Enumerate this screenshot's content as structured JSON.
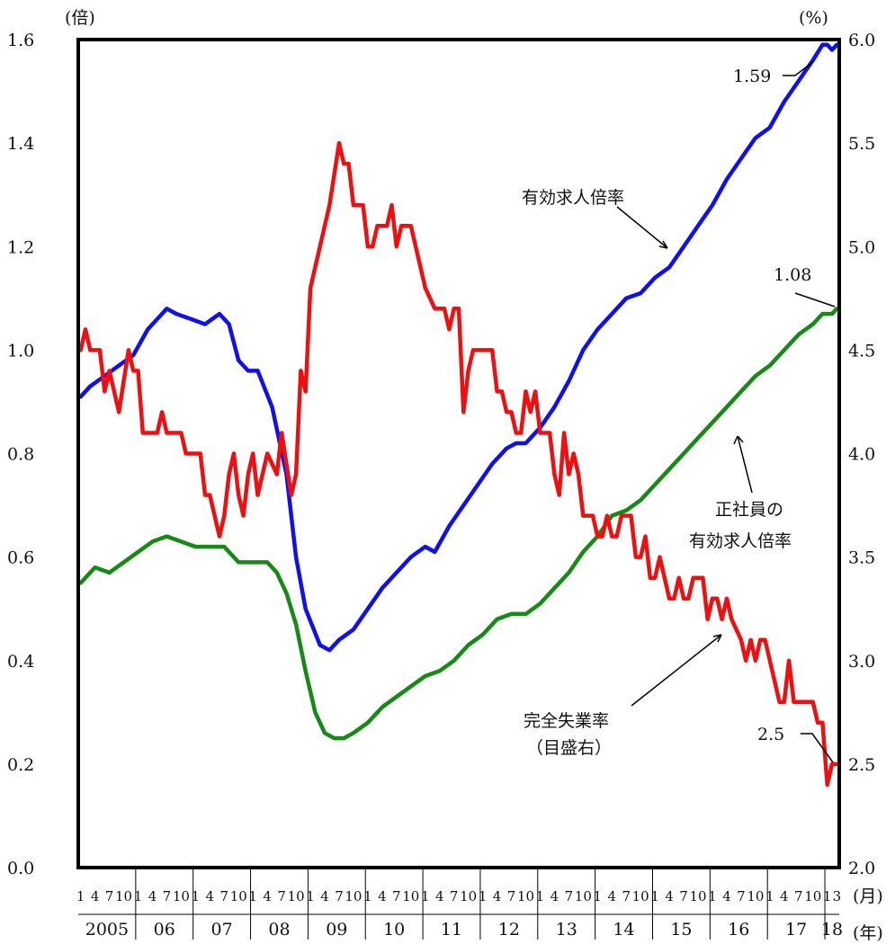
{
  "chart_data": {
    "type": "line",
    "left_axis_unit": "(倍)",
    "right_axis_unit": "(%)",
    "month_axis_unit": "(月)",
    "year_axis_unit": "(年)",
    "left_ylim": [
      0.0,
      1.6
    ],
    "right_ylim": [
      2.0,
      6.0
    ],
    "left_ticks": [
      "0.0",
      "0.2",
      "0.4",
      "0.6",
      "0.8",
      "1.0",
      "1.2",
      "1.4",
      "1.6"
    ],
    "right_ticks": [
      "2.0",
      "2.5",
      "3.0",
      "3.5",
      "4.0",
      "4.5",
      "5.0",
      "5.5",
      "6.0"
    ],
    "month_tick_labels": [
      "1",
      "4",
      "7",
      "10"
    ],
    "last_year_month_labels": [
      "1",
      "3"
    ],
    "years": [
      "2005",
      "06",
      "07",
      "08",
      "09",
      "10",
      "11",
      "12",
      "13",
      "14",
      "15",
      "16",
      "17",
      "18"
    ],
    "x_start": "2005-01",
    "x_end": "2018-03",
    "grid": false,
    "series": [
      {
        "name": "有効求人倍率",
        "axis": "left",
        "color": "#1010ee",
        "points": [
          [
            "2005-01",
            0.91
          ],
          [
            "2005-03",
            0.93
          ],
          [
            "2005-06",
            0.95
          ],
          [
            "2005-09",
            0.97
          ],
          [
            "2005-12",
            0.99
          ],
          [
            "2006-03",
            1.04
          ],
          [
            "2006-06",
            1.07
          ],
          [
            "2006-07",
            1.08
          ],
          [
            "2006-09",
            1.07
          ],
          [
            "2006-12",
            1.06
          ],
          [
            "2007-03",
            1.05
          ],
          [
            "2007-06",
            1.07
          ],
          [
            "2007-08",
            1.05
          ],
          [
            "2007-10",
            0.98
          ],
          [
            "2007-12",
            0.96
          ],
          [
            "2008-02",
            0.96
          ],
          [
            "2008-05",
            0.89
          ],
          [
            "2008-08",
            0.76
          ],
          [
            "2008-10",
            0.6
          ],
          [
            "2008-12",
            0.5
          ],
          [
            "2009-03",
            0.43
          ],
          [
            "2009-05",
            0.42
          ],
          [
            "2009-07",
            0.44
          ],
          [
            "2009-10",
            0.46
          ],
          [
            "2010-01",
            0.5
          ],
          [
            "2010-04",
            0.54
          ],
          [
            "2010-07",
            0.57
          ],
          [
            "2010-10",
            0.6
          ],
          [
            "2011-01",
            0.62
          ],
          [
            "2011-03",
            0.61
          ],
          [
            "2011-06",
            0.66
          ],
          [
            "2011-09",
            0.7
          ],
          [
            "2011-12",
            0.74
          ],
          [
            "2012-03",
            0.78
          ],
          [
            "2012-06",
            0.81
          ],
          [
            "2012-08",
            0.82
          ],
          [
            "2012-10",
            0.82
          ],
          [
            "2013-01",
            0.85
          ],
          [
            "2013-04",
            0.89
          ],
          [
            "2013-07",
            0.94
          ],
          [
            "2013-10",
            1.0
          ],
          [
            "2014-01",
            1.04
          ],
          [
            "2014-04",
            1.07
          ],
          [
            "2014-07",
            1.1
          ],
          [
            "2014-10",
            1.11
          ],
          [
            "2015-01",
            1.14
          ],
          [
            "2015-04",
            1.16
          ],
          [
            "2015-07",
            1.2
          ],
          [
            "2015-10",
            1.24
          ],
          [
            "2016-01",
            1.28
          ],
          [
            "2016-04",
            1.33
          ],
          [
            "2016-07",
            1.37
          ],
          [
            "2016-10",
            1.41
          ],
          [
            "2017-01",
            1.43
          ],
          [
            "2017-04",
            1.48
          ],
          [
            "2017-07",
            1.52
          ],
          [
            "2017-10",
            1.56
          ],
          [
            "2017-12",
            1.59
          ],
          [
            "2018-01",
            1.59
          ],
          [
            "2018-02",
            1.58
          ],
          [
            "2018-03",
            1.59
          ]
        ]
      },
      {
        "name": "正社員の有効求人倍率",
        "axis": "left",
        "color": "#158a15",
        "points": [
          [
            "2005-01",
            0.55
          ],
          [
            "2005-04",
            0.58
          ],
          [
            "2005-07",
            0.57
          ],
          [
            "2005-10",
            0.59
          ],
          [
            "2006-01",
            0.61
          ],
          [
            "2006-04",
            0.63
          ],
          [
            "2006-07",
            0.64
          ],
          [
            "2006-10",
            0.63
          ],
          [
            "2007-01",
            0.62
          ],
          [
            "2007-04",
            0.62
          ],
          [
            "2007-07",
            0.62
          ],
          [
            "2007-10",
            0.59
          ],
          [
            "2008-01",
            0.59
          ],
          [
            "2008-04",
            0.59
          ],
          [
            "2008-06",
            0.57
          ],
          [
            "2008-08",
            0.53
          ],
          [
            "2008-10",
            0.47
          ],
          [
            "2008-12",
            0.38
          ],
          [
            "2009-02",
            0.3
          ],
          [
            "2009-04",
            0.26
          ],
          [
            "2009-06",
            0.25
          ],
          [
            "2009-08",
            0.25
          ],
          [
            "2009-10",
            0.26
          ],
          [
            "2010-01",
            0.28
          ],
          [
            "2010-04",
            0.31
          ],
          [
            "2010-07",
            0.33
          ],
          [
            "2010-10",
            0.35
          ],
          [
            "2011-01",
            0.37
          ],
          [
            "2011-04",
            0.38
          ],
          [
            "2011-07",
            0.4
          ],
          [
            "2011-10",
            0.43
          ],
          [
            "2012-01",
            0.45
          ],
          [
            "2012-04",
            0.48
          ],
          [
            "2012-07",
            0.49
          ],
          [
            "2012-10",
            0.49
          ],
          [
            "2013-01",
            0.51
          ],
          [
            "2013-04",
            0.54
          ],
          [
            "2013-07",
            0.57
          ],
          [
            "2013-10",
            0.61
          ],
          [
            "2014-01",
            0.64
          ],
          [
            "2014-04",
            0.68
          ],
          [
            "2014-07",
            0.69
          ],
          [
            "2014-10",
            0.71
          ],
          [
            "2015-01",
            0.74
          ],
          [
            "2015-04",
            0.77
          ],
          [
            "2015-07",
            0.8
          ],
          [
            "2015-10",
            0.83
          ],
          [
            "2016-01",
            0.86
          ],
          [
            "2016-04",
            0.89
          ],
          [
            "2016-07",
            0.92
          ],
          [
            "2016-10",
            0.95
          ],
          [
            "2017-01",
            0.97
          ],
          [
            "2017-04",
            1.0
          ],
          [
            "2017-07",
            1.03
          ],
          [
            "2017-10",
            1.05
          ],
          [
            "2017-12",
            1.07
          ],
          [
            "2018-02",
            1.07
          ],
          [
            "2018-03",
            1.08
          ]
        ]
      },
      {
        "name": "完全失業率",
        "axis": "right",
        "color": "#ee1010",
        "points": [
          [
            "2005-01",
            4.5
          ],
          [
            "2005-02",
            4.6
          ],
          [
            "2005-03",
            4.5
          ],
          [
            "2005-05",
            4.5
          ],
          [
            "2005-06",
            4.3
          ],
          [
            "2005-07",
            4.4
          ],
          [
            "2005-09",
            4.2
          ],
          [
            "2005-11",
            4.5
          ],
          [
            "2005-12",
            4.4
          ],
          [
            "2006-01",
            4.4
          ],
          [
            "2006-02",
            4.1
          ],
          [
            "2006-05",
            4.1
          ],
          [
            "2006-06",
            4.2
          ],
          [
            "2006-07",
            4.1
          ],
          [
            "2006-10",
            4.1
          ],
          [
            "2006-11",
            4.0
          ],
          [
            "2007-02",
            4.0
          ],
          [
            "2007-03",
            3.8
          ],
          [
            "2007-04",
            3.8
          ],
          [
            "2007-05",
            3.7
          ],
          [
            "2007-06",
            3.6
          ],
          [
            "2007-07",
            3.7
          ],
          [
            "2007-08",
            3.9
          ],
          [
            "2007-09",
            4.0
          ],
          [
            "2007-10",
            3.8
          ],
          [
            "2007-11",
            3.7
          ],
          [
            "2007-12",
            3.9
          ],
          [
            "2008-01",
            4.0
          ],
          [
            "2008-02",
            3.8
          ],
          [
            "2008-04",
            4.0
          ],
          [
            "2008-06",
            3.9
          ],
          [
            "2008-07",
            4.1
          ],
          [
            "2008-09",
            3.8
          ],
          [
            "2008-10",
            3.9
          ],
          [
            "2008-11",
            4.4
          ],
          [
            "2008-12",
            4.3
          ],
          [
            "2009-01",
            4.8
          ],
          [
            "2009-03",
            5.0
          ],
          [
            "2009-05",
            5.2
          ],
          [
            "2009-07",
            5.5
          ],
          [
            "2009-08",
            5.4
          ],
          [
            "2009-09",
            5.4
          ],
          [
            "2009-10",
            5.2
          ],
          [
            "2009-12",
            5.2
          ],
          [
            "2010-01",
            5.0
          ],
          [
            "2010-02",
            5.0
          ],
          [
            "2010-03",
            5.1
          ],
          [
            "2010-05",
            5.1
          ],
          [
            "2010-06",
            5.2
          ],
          [
            "2010-07",
            5.0
          ],
          [
            "2010-08",
            5.1
          ],
          [
            "2010-10",
            5.1
          ],
          [
            "2011-01",
            4.8
          ],
          [
            "2011-03",
            4.7
          ],
          [
            "2011-05",
            4.7
          ],
          [
            "2011-06",
            4.6
          ],
          [
            "2011-07",
            4.7
          ],
          [
            "2011-08",
            4.7
          ],
          [
            "2011-09",
            4.2
          ],
          [
            "2011-10",
            4.4
          ],
          [
            "2011-11",
            4.5
          ],
          [
            "2012-01",
            4.5
          ],
          [
            "2012-03",
            4.5
          ],
          [
            "2012-04",
            4.3
          ],
          [
            "2012-05",
            4.3
          ],
          [
            "2012-06",
            4.2
          ],
          [
            "2012-07",
            4.2
          ],
          [
            "2012-08",
            4.1
          ],
          [
            "2012-09",
            4.1
          ],
          [
            "2012-10",
            4.3
          ],
          [
            "2012-11",
            4.2
          ],
          [
            "2012-12",
            4.3
          ],
          [
            "2013-01",
            4.1
          ],
          [
            "2013-03",
            4.1
          ],
          [
            "2013-04",
            3.9
          ],
          [
            "2013-05",
            3.8
          ],
          [
            "2013-06",
            4.1
          ],
          [
            "2013-07",
            3.9
          ],
          [
            "2013-08",
            4.0
          ],
          [
            "2013-09",
            3.9
          ],
          [
            "2013-10",
            3.7
          ],
          [
            "2013-12",
            3.7
          ],
          [
            "2014-01",
            3.6
          ],
          [
            "2014-02",
            3.6
          ],
          [
            "2014-03",
            3.7
          ],
          [
            "2014-04",
            3.6
          ],
          [
            "2014-05",
            3.6
          ],
          [
            "2014-06",
            3.7
          ],
          [
            "2014-08",
            3.7
          ],
          [
            "2014-09",
            3.5
          ],
          [
            "2014-10",
            3.5
          ],
          [
            "2014-11",
            3.6
          ],
          [
            "2014-12",
            3.4
          ],
          [
            "2015-01",
            3.4
          ],
          [
            "2015-02",
            3.5
          ],
          [
            "2015-03",
            3.4
          ],
          [
            "2015-04",
            3.3
          ],
          [
            "2015-05",
            3.3
          ],
          [
            "2015-06",
            3.4
          ],
          [
            "2015-07",
            3.3
          ],
          [
            "2015-08",
            3.3
          ],
          [
            "2015-09",
            3.4
          ],
          [
            "2015-11",
            3.4
          ],
          [
            "2015-12",
            3.2
          ],
          [
            "2016-01",
            3.3
          ],
          [
            "2016-02",
            3.3
          ],
          [
            "2016-03",
            3.2
          ],
          [
            "2016-04",
            3.3
          ],
          [
            "2016-05",
            3.2
          ],
          [
            "2016-07",
            3.1
          ],
          [
            "2016-08",
            3.0
          ],
          [
            "2016-09",
            3.1
          ],
          [
            "2016-10",
            3.0
          ],
          [
            "2016-11",
            3.1
          ],
          [
            "2016-12",
            3.1
          ],
          [
            "2017-02",
            2.9
          ],
          [
            "2017-03",
            2.8
          ],
          [
            "2017-04",
            2.8
          ],
          [
            "2017-05",
            3.0
          ],
          [
            "2017-06",
            2.8
          ],
          [
            "2017-08",
            2.8
          ],
          [
            "2017-09",
            2.8
          ],
          [
            "2017-10",
            2.8
          ],
          [
            "2017-11",
            2.7
          ],
          [
            "2017-12",
            2.7
          ],
          [
            "2018-01",
            2.4
          ],
          [
            "2018-02",
            2.5
          ],
          [
            "2018-03",
            2.5
          ]
        ]
      }
    ],
    "annotations": {
      "jobs_ratio_label": "有効求人倍率",
      "regular_label_line1": "正社員の",
      "regular_label_line2": "有効求人倍率",
      "unemployment_label_line1": "完全失業率",
      "unemployment_label_line2": "（目盛右）",
      "jobs_ratio_last": "1.59",
      "regular_last": "1.08",
      "unemployment_last": "2.5"
    }
  }
}
